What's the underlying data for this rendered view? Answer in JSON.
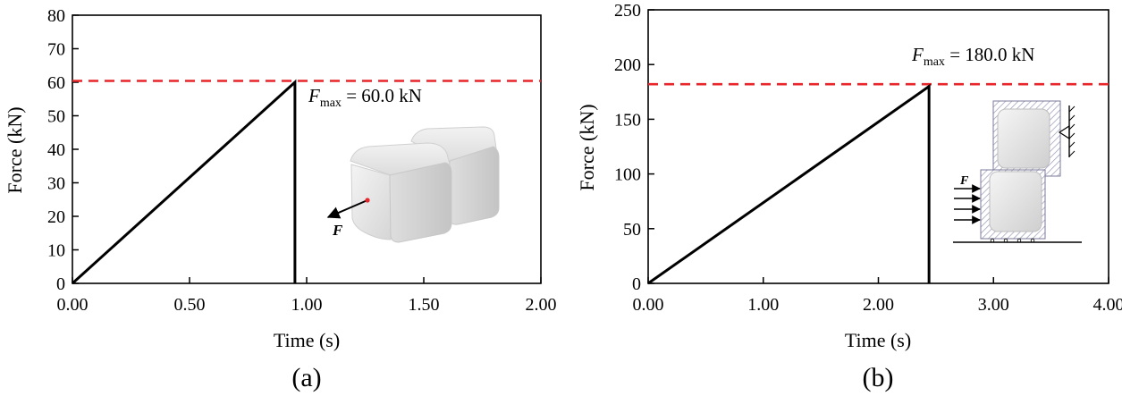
{
  "chart_data": [
    {
      "type": "line",
      "panel_label": "(a)",
      "xlabel": "Time (s)",
      "ylabel": "Force (kN)",
      "xlim": [
        0,
        2.0
      ],
      "ylim": [
        0,
        80
      ],
      "x_ticks": [
        "0.00",
        "0.50",
        "1.00",
        "1.50",
        "2.00"
      ],
      "x_tick_values": [
        0,
        0.5,
        1.0,
        1.5,
        2.0
      ],
      "y_ticks": [
        "0",
        "10",
        "20",
        "30",
        "40",
        "50",
        "60",
        "70",
        "80"
      ],
      "y_tick_values": [
        0,
        10,
        20,
        30,
        40,
        50,
        60,
        70,
        80
      ],
      "series": [
        {
          "x": [
            0.0,
            0.95,
            0.95
          ],
          "y": [
            0,
            60,
            0
          ]
        }
      ],
      "reference_line": {
        "y": 60.4,
        "style": "dashed",
        "color": "#e8252a"
      },
      "annotation": {
        "symbol": "F",
        "subscript": "max",
        "text": " = 60.0 kN"
      },
      "inset_label": "F",
      "line_color": "#000000"
    },
    {
      "type": "line",
      "panel_label": "(b)",
      "xlabel": "Time (s)",
      "ylabel": "Force (kN)",
      "xlim": [
        0,
        4.0
      ],
      "ylim": [
        0,
        250
      ],
      "x_ticks": [
        "0.00",
        "1.00",
        "2.00",
        "3.00",
        "4.00"
      ],
      "x_tick_values": [
        0,
        1.0,
        2.0,
        3.0,
        4.0
      ],
      "y_ticks": [
        "0",
        "50",
        "100",
        "150",
        "200",
        "250"
      ],
      "y_tick_values": [
        0,
        50,
        100,
        150,
        200,
        250
      ],
      "series": [
        {
          "x": [
            0.0,
            2.44,
            2.44
          ],
          "y": [
            0,
            180,
            0
          ]
        }
      ],
      "reference_line": {
        "y": 182,
        "style": "dashed",
        "color": "#e8252a"
      },
      "annotation": {
        "symbol": "F",
        "subscript": "max",
        "text": " = 180.0 kN"
      },
      "inset_label": "F",
      "line_color": "#000000"
    }
  ]
}
